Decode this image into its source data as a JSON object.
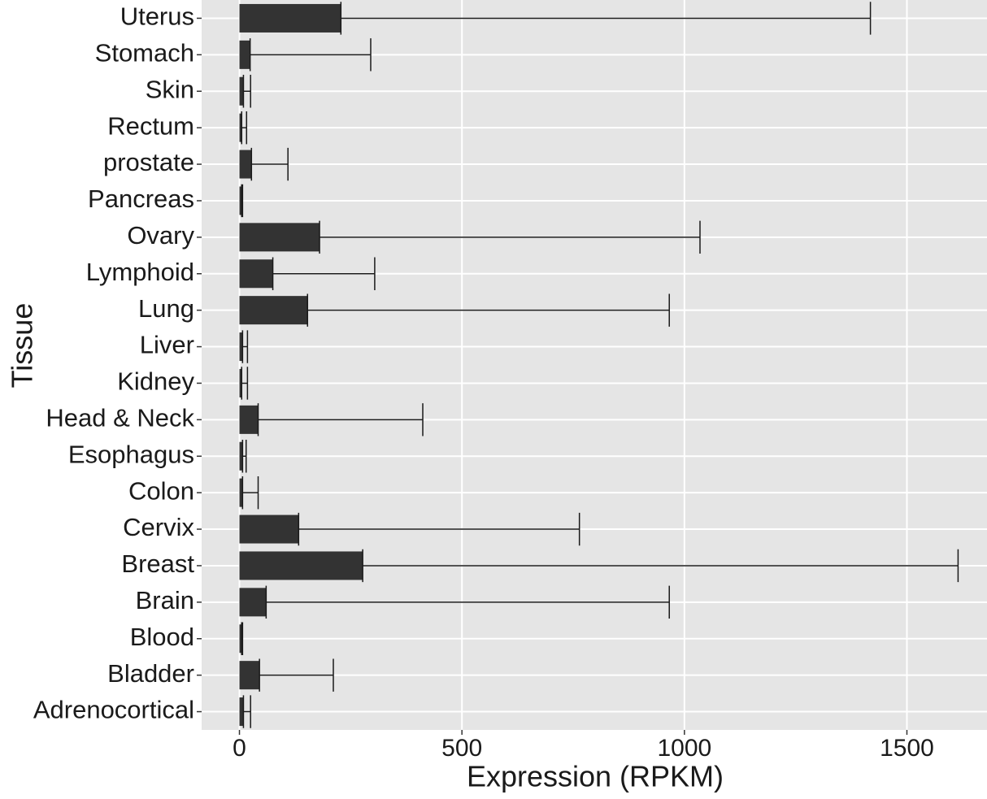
{
  "chart_data": {
    "type": "bar-errorbar",
    "orientation": "horizontal",
    "x_label": "Expression (RPKM)",
    "y_label": "Tissue",
    "categories": [
      "Uterus",
      "Stomach",
      "Skin",
      "Rectum",
      "prostate",
      "Pancreas",
      "Ovary",
      "Lymphoid",
      "Lung",
      "Liver",
      "Kidney",
      "Head & Neck",
      "Esophagus",
      "Colon",
      "Cervix",
      "Breast",
      "Brain",
      "Blood",
      "Bladder",
      "Adrenocortical"
    ],
    "values": [
      228,
      24,
      9,
      5,
      27,
      5,
      180,
      75,
      153,
      7,
      5,
      42,
      7,
      7,
      133,
      277,
      60,
      5,
      45,
      9
    ],
    "errors": [
      1190,
      271,
      16,
      11,
      82,
      2,
      855,
      229,
      813,
      11,
      13,
      370,
      8,
      35,
      631,
      1338,
      906,
      2,
      166,
      16
    ],
    "color": "#333333",
    "error_color": "#1a1a1a",
    "xlim": [
      -85,
      1680
    ],
    "xticks": [
      0,
      500,
      1000,
      1500
    ],
    "grid": true,
    "panel_color": "#e5e5e5"
  }
}
